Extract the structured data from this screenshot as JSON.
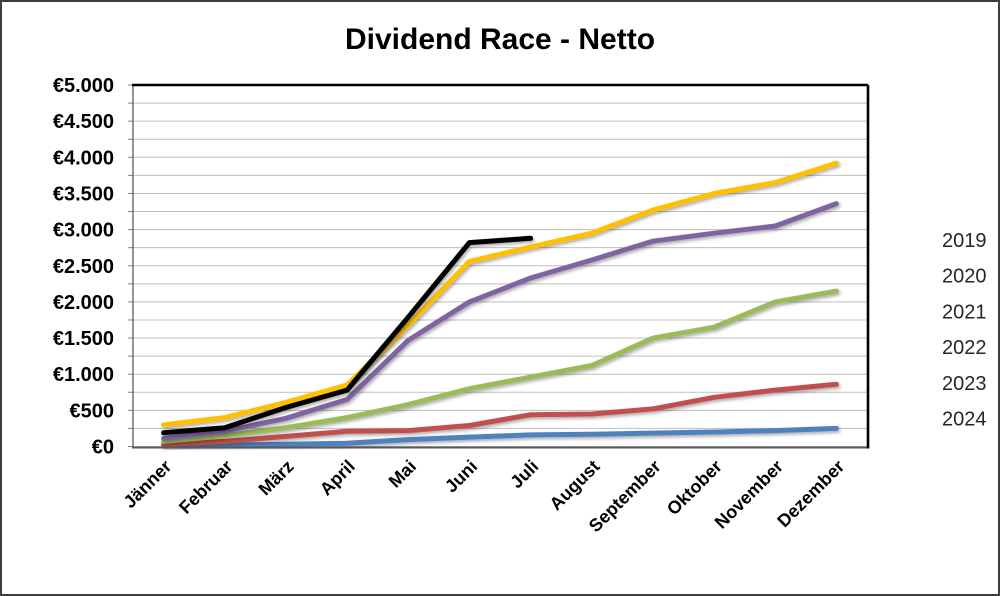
{
  "frame": {
    "background": "#FFFFFF",
    "border_color": "#3F3F3F"
  },
  "chart_data": {
    "type": "line",
    "title": "Dividend Race - Netto",
    "categories": [
      "Jänner",
      "Februar",
      "März",
      "April",
      "Mai",
      "Juni",
      "Juli",
      "August",
      "September",
      "Oktober",
      "November",
      "Dezember"
    ],
    "series": [
      {
        "name": "2019",
        "color": "#4F81BD",
        "values": [
          10,
          20,
          30,
          45,
          95,
          130,
          160,
          170,
          185,
          200,
          220,
          250
        ]
      },
      {
        "name": "2020",
        "color": "#C0504D",
        "values": [
          30,
          70,
          140,
          210,
          220,
          290,
          440,
          450,
          520,
          680,
          780,
          860
        ]
      },
      {
        "name": "2021",
        "color": "#9BBB59",
        "values": [
          70,
          150,
          260,
          400,
          580,
          800,
          960,
          1120,
          1500,
          1650,
          2000,
          2150
        ]
      },
      {
        "name": "2022",
        "color": "#8064A2",
        "values": [
          110,
          210,
          390,
          650,
          1470,
          2000,
          2330,
          2580,
          2840,
          2950,
          3050,
          3360
        ]
      },
      {
        "name": "2023",
        "color": "#FFC000",
        "values": [
          300,
          400,
          610,
          850,
          1680,
          2560,
          2760,
          2950,
          3270,
          3500,
          3650,
          3920
        ]
      },
      {
        "name": "2024",
        "color": "#000000",
        "values": [
          190,
          260,
          540,
          780,
          1790,
          2820,
          2880
        ]
      }
    ],
    "ylim": [
      0,
      5000
    ],
    "gridline_interval": 250,
    "ytick_label_interval": 500,
    "ytick_labels": [
      "€0",
      "€500",
      "€1.000",
      "€1.500",
      "€2.000",
      "€2.500",
      "€3.000",
      "€3.500",
      "€4.000",
      "€4.500",
      "€5.000"
    ],
    "grid": true,
    "legend_position": "right",
    "legend_entries": [
      "2019",
      "2020",
      "2021",
      "2022",
      "2023",
      "2024"
    ],
    "colors": {
      "gridline": "#BFBFBF",
      "axis": "#595959",
      "plot_border": "#000000",
      "tick": "#808080",
      "axis_label": "#000000",
      "legend_text": "#262626"
    }
  }
}
